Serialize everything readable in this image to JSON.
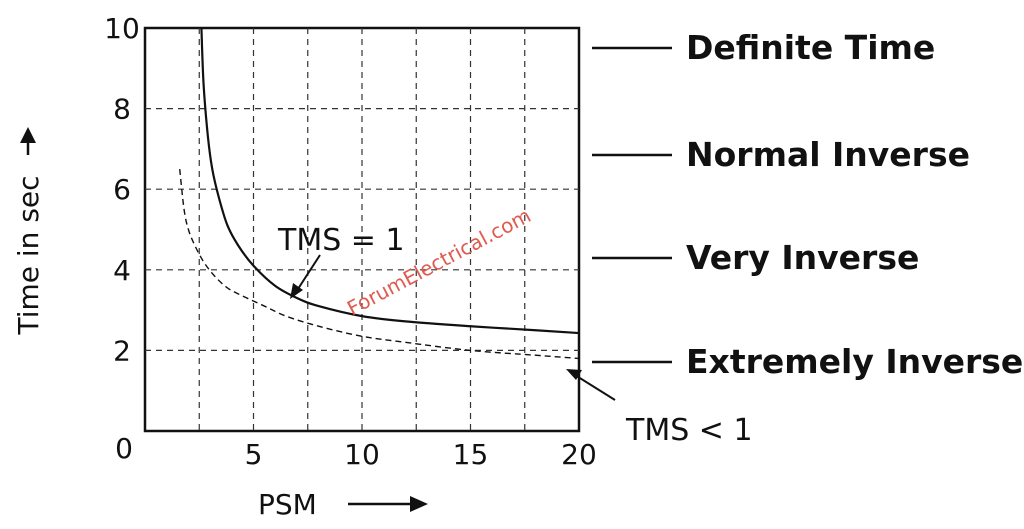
{
  "chart_data": {
    "type": "line",
    "xlabel": "PSM",
    "ylabel": "Time in sec",
    "xlim": [
      0,
      20
    ],
    "ylim": [
      0,
      10
    ],
    "x_ticks": [
      {
        "value": 5,
        "label": "5"
      },
      {
        "value": 10,
        "label": "10"
      },
      {
        "value": 15,
        "label": "15"
      },
      {
        "value": 20,
        "label": "20"
      }
    ],
    "y_ticks": [
      {
        "value": 2,
        "label": "2"
      },
      {
        "value": 4,
        "label": "4"
      },
      {
        "value": 6,
        "label": "6"
      },
      {
        "value": 8,
        "label": "8"
      },
      {
        "value": 10,
        "label": "10"
      }
    ],
    "origin_label": "0",
    "grid": "dashed",
    "series": [
      {
        "name": "TMS = 1",
        "style": "solid",
        "x": [
          2.6,
          2.7,
          2.9,
          3.1,
          3.4,
          3.8,
          4.3,
          5,
          6,
          7,
          8,
          10,
          12,
          15,
          18,
          20
        ],
        "y": [
          10.0,
          8.6,
          7.3,
          6.5,
          5.8,
          5.1,
          4.6,
          4.1,
          3.6,
          3.3,
          3.1,
          2.85,
          2.72,
          2.6,
          2.5,
          2.43
        ]
      },
      {
        "name": "TMS < 1",
        "style": "dashed",
        "x": [
          1.6,
          1.8,
          2.0,
          2.3,
          2.7,
          3.2,
          3.8,
          4.5,
          5.5,
          6.5,
          8,
          10,
          12,
          15,
          18,
          20
        ],
        "y": [
          6.5,
          5.5,
          5.0,
          4.6,
          4.2,
          3.85,
          3.55,
          3.35,
          3.1,
          2.85,
          2.6,
          2.35,
          2.2,
          2.0,
          1.88,
          1.8
        ]
      }
    ],
    "legend": [
      {
        "label": "Definite Time"
      },
      {
        "label": "Normal Inverse"
      },
      {
        "label": "Very Inverse"
      },
      {
        "label": "Extremely Inverse"
      }
    ],
    "annotations": [
      {
        "label": "TMS = 1",
        "target_series": 0,
        "target_x": 6.5
      },
      {
        "label": "TMS < 1",
        "target_series": 1,
        "target_x": 19.5
      }
    ],
    "watermark": "ForumElectrical.com"
  },
  "colors": {
    "ink": "#111111",
    "grid": "#333333",
    "watermark": "#e05a50"
  }
}
